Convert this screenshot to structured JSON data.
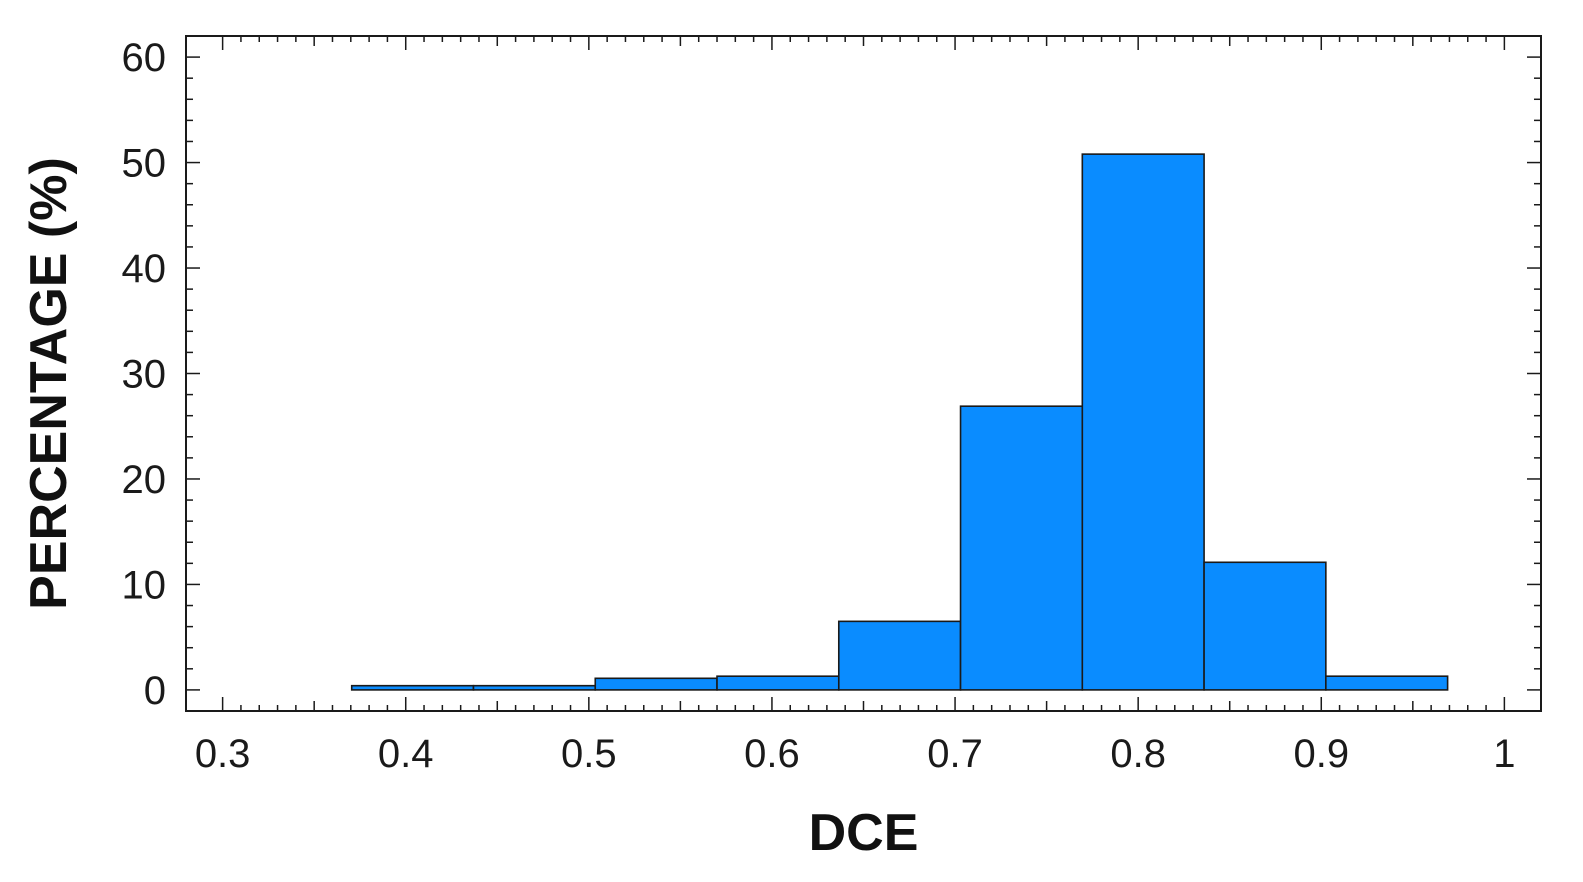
{
  "chart_data": {
    "type": "bar",
    "xlabel": "DCE",
    "ylabel": "PERCENTAGE (%)",
    "xlim": [
      0.28,
      1.02
    ],
    "ylim": [
      -2,
      62
    ],
    "x_ticks": [
      0.3,
      0.4,
      0.5,
      0.6,
      0.7,
      0.8,
      0.9,
      1
    ],
    "x_tick_labels": [
      "0.3",
      "0.4",
      "0.5",
      "0.6",
      "0.7",
      "0.8",
      "0.9",
      "1"
    ],
    "y_ticks": [
      0,
      10,
      20,
      30,
      40,
      50,
      60
    ],
    "y_tick_labels": [
      "0",
      "10",
      "20",
      "30",
      "40",
      "50",
      "60"
    ],
    "bin_edges": [
      0.3705,
      0.437,
      0.5035,
      0.57,
      0.6365,
      0.703,
      0.7695,
      0.836,
      0.9025,
      0.969
    ],
    "values": [
      0.4,
      0.4,
      1.1,
      1.3,
      6.5,
      26.9,
      50.8,
      12.1,
      1.3
    ],
    "grid": false,
    "bar_color": "#0a8cff",
    "edge_color": "#1a1a1a"
  }
}
